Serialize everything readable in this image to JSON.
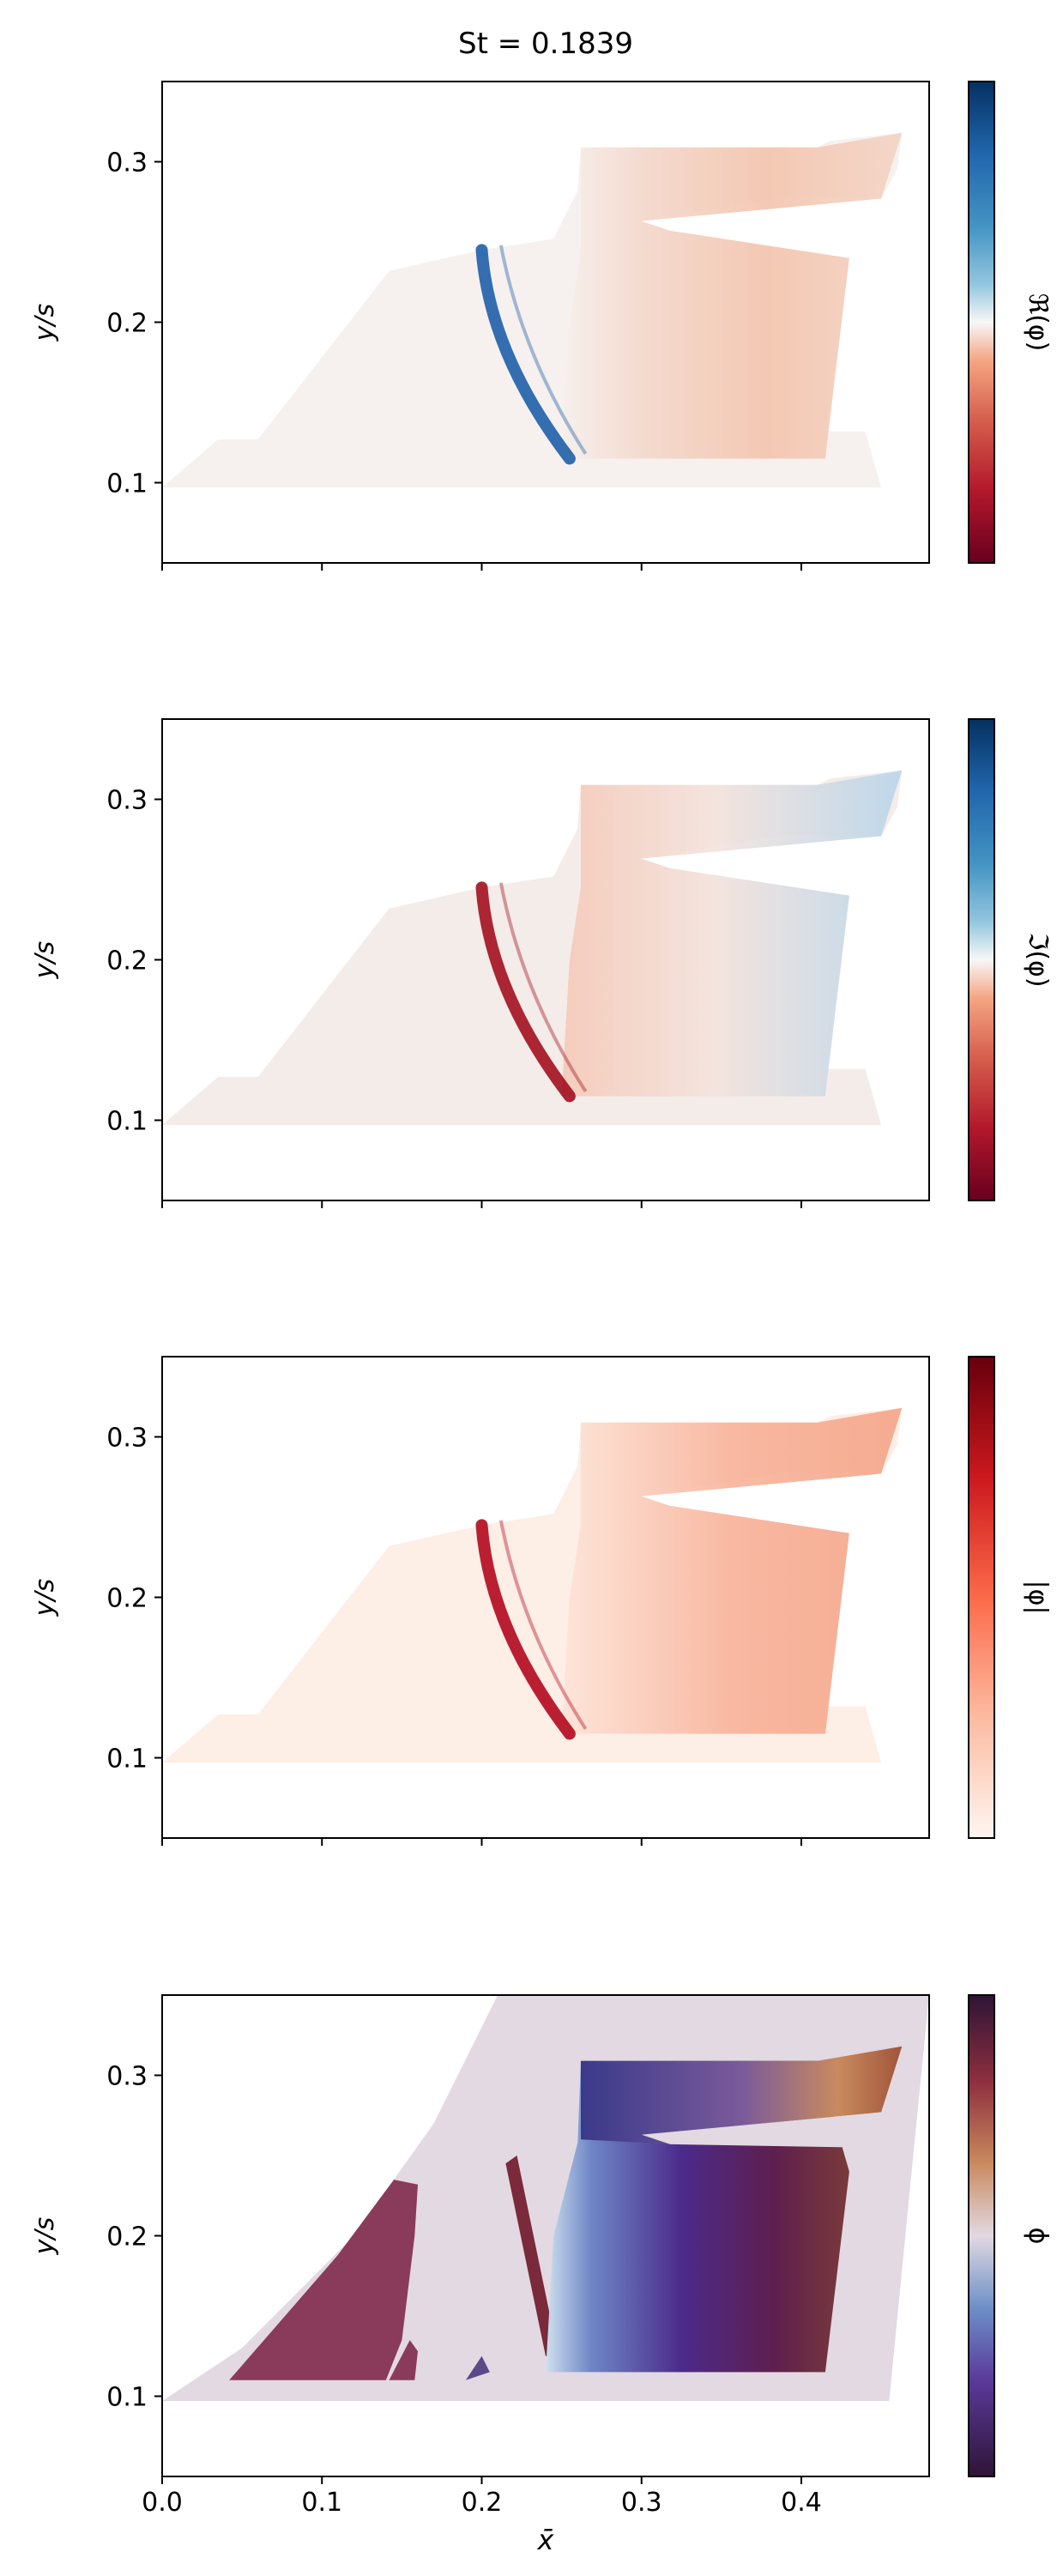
{
  "figure": {
    "title": "St = 0.1839",
    "xlabel": "x̄",
    "ylabel": "y/s",
    "x_ticks": [
      "0.0",
      "0.1",
      "0.2",
      "0.3",
      "0.4"
    ],
    "y_ticks": [
      "0.1",
      "0.2",
      "0.3"
    ]
  },
  "panels": [
    {
      "colorbar_label": "ℜ(φ)",
      "colormap": "diverging-red-white-blue"
    },
    {
      "colorbar_label": "ℑ(φ)",
      "colormap": "diverging-red-white-blue"
    },
    {
      "colorbar_label": "|φ|",
      "colormap": "sequential-white-red"
    },
    {
      "colorbar_label": "ϕ",
      "colormap": "twilight-shifted"
    }
  ],
  "chart_data": [
    {
      "type": "heatmap",
      "title": "St = 0.1839",
      "xlabel": "",
      "ylabel": "y/s",
      "xlim": [
        0.0,
        0.48
      ],
      "ylim": [
        0.05,
        0.35
      ],
      "colorbar": "ℜ(φ)",
      "colors": {
        "positive": "#08306b",
        "zero": "#f7f4f2",
        "negative": "#67001f"
      }
    },
    {
      "type": "heatmap",
      "xlabel": "",
      "ylabel": "y/s",
      "xlim": [
        0.0,
        0.48
      ],
      "ylim": [
        0.05,
        0.35
      ],
      "colorbar": "ℑ(φ)",
      "colors": {
        "positive": "#08306b",
        "zero": "#f7f4f2",
        "negative": "#67001f"
      }
    },
    {
      "type": "heatmap",
      "xlabel": "",
      "ylabel": "y/s",
      "xlim": [
        0.0,
        0.48
      ],
      "ylim": [
        0.05,
        0.35
      ],
      "colorbar": "|φ|",
      "colors": {
        "low": "#fff5f0",
        "high": "#67000d"
      }
    },
    {
      "type": "heatmap",
      "xlabel": "x̄",
      "ylabel": "y/s",
      "xlim": [
        0.0,
        0.48
      ],
      "ylim": [
        0.05,
        0.35
      ],
      "colorbar": "ϕ",
      "colors": {
        "low": "#2f1436",
        "mid": "#e2d9e2",
        "high": "#2f1436"
      }
    }
  ]
}
